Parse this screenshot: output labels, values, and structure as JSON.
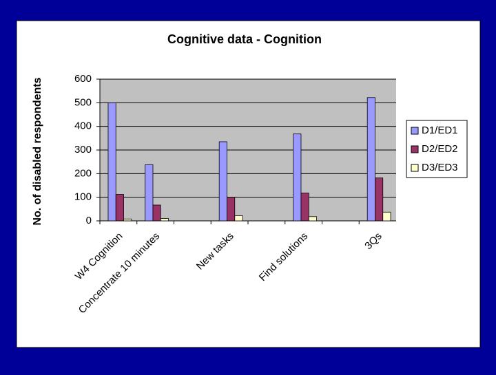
{
  "chart_data": {
    "type": "bar",
    "title": "Cognitive data - Cognition",
    "y_label": "No. of disabled respondents",
    "categories": [
      "W4 Cognition",
      "Concentrate 10 minutes",
      null,
      "New tasks",
      null,
      "Find solutions",
      null,
      "3Qs"
    ],
    "series": [
      {
        "name": "D1/ED1",
        "color": "#9999ff",
        "values": [
          500,
          238,
          null,
          335,
          null,
          368,
          null,
          522
        ]
      },
      {
        "name": "D2/ED2",
        "color": "#993366",
        "values": [
          112,
          67,
          null,
          100,
          null,
          118,
          null,
          182
        ]
      },
      {
        "name": "D3/ED3",
        "color": "#ffffcc",
        "values": [
          8,
          10,
          null,
          22,
          null,
          18,
          null,
          37
        ]
      }
    ],
    "ylim": [
      0,
      600
    ],
    "yticks": [
      0,
      100,
      200,
      300,
      400,
      500,
      600
    ],
    "grid": true,
    "legend": "right"
  }
}
